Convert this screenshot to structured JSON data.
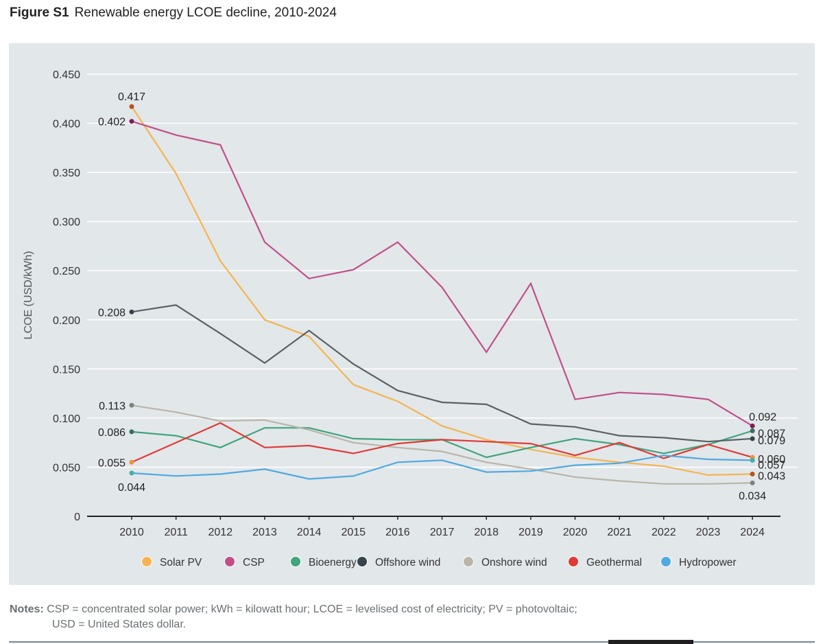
{
  "figure": {
    "number": "Figure S1",
    "title": "Renewable energy LCOE decline, 2010-2024"
  },
  "notes": {
    "label": "Notes:",
    "line1": "CSP = concentrated solar power; kWh = kilowatt hour; LCOE = levelised cost of electricity; PV = photovoltaic;",
    "line2": "USD = United States dollar."
  },
  "chart_data": {
    "type": "line",
    "title": "Renewable energy LCOE decline, 2010-2024",
    "xlabel": "",
    "ylabel": "LCOE (USD/kWh)",
    "ylim": [
      0,
      0.45
    ],
    "yticks": [
      0,
      0.05,
      0.1,
      0.15,
      0.2,
      0.25,
      0.3,
      0.35,
      0.4,
      0.45
    ],
    "ytick_labels": [
      "0",
      "0.050",
      "0.100",
      "0.150",
      "0.200",
      "0.250",
      "0.300",
      "0.350",
      "0.400",
      "0.450"
    ],
    "x": [
      "2010",
      "2011",
      "2012",
      "2013",
      "2014",
      "2015",
      "2016",
      "2017",
      "2018",
      "2019",
      "2020",
      "2021",
      "2022",
      "2023",
      "2024"
    ],
    "grid": true,
    "legend_position": "bottom-center",
    "series": [
      {
        "name": "Solar PV",
        "color": "#f5b44f",
        "end_marker_color": "#b5541f",
        "values": [
          0.417,
          0.349,
          0.26,
          0.2,
          0.183,
          0.134,
          0.117,
          0.092,
          0.078,
          0.068,
          0.06,
          0.055,
          0.051,
          0.042,
          0.043
        ],
        "start_label": "0.417",
        "end_label": "0.043"
      },
      {
        "name": "CSP",
        "color": "#c0508a",
        "end_marker_color": "#7a1f57",
        "values": [
          0.402,
          0.388,
          0.378,
          0.279,
          0.242,
          0.251,
          0.279,
          0.233,
          0.167,
          0.237,
          0.119,
          0.126,
          0.124,
          0.119,
          0.092
        ],
        "start_label": "0.402",
        "end_label": "0.092"
      },
      {
        "name": "Bioenergy",
        "color": "#40a47c",
        "end_marker_color": "#3a6e5c",
        "values": [
          0.086,
          0.082,
          0.07,
          0.09,
          0.09,
          0.079,
          0.078,
          0.078,
          0.06,
          0.07,
          0.079,
          0.073,
          0.064,
          0.073,
          0.087
        ],
        "start_label": "0.086",
        "end_label": "0.087"
      },
      {
        "name": "Offshore wind",
        "color": "#5c6062",
        "end_marker_color": "#33434a",
        "values": [
          0.208,
          0.215,
          0.186,
          0.156,
          0.189,
          0.155,
          0.128,
          0.116,
          0.114,
          0.094,
          0.091,
          0.082,
          0.08,
          0.076,
          0.079
        ],
        "start_label": "0.208",
        "end_label": "0.079"
      },
      {
        "name": "Onshore wind",
        "color": "#b9b5a8",
        "end_marker_color": "#7b847f",
        "values": [
          0.113,
          0.106,
          0.097,
          0.098,
          0.088,
          0.075,
          0.07,
          0.066,
          0.055,
          0.048,
          0.04,
          0.036,
          0.033,
          0.033,
          0.034
        ],
        "start_label": "0.113",
        "end_label": "0.034"
      },
      {
        "name": "Geothermal",
        "color": "#e03a34",
        "end_marker_color": "#f0913f",
        "values": [
          0.055,
          0.075,
          0.095,
          0.07,
          0.072,
          0.064,
          0.074,
          0.078,
          0.076,
          0.074,
          0.062,
          0.075,
          0.059,
          0.073,
          0.06
        ],
        "start_label": "0.055",
        "end_label": "0.060"
      },
      {
        "name": "Hydropower",
        "color": "#4fa9e0",
        "end_marker_color": "#40b0a4",
        "values": [
          0.044,
          0.041,
          0.043,
          0.048,
          0.038,
          0.041,
          0.055,
          0.057,
          0.045,
          0.046,
          0.052,
          0.054,
          0.062,
          0.058,
          0.057
        ],
        "start_label": "0.044",
        "end_label": "0.057"
      }
    ],
    "legend_colors": [
      "#f5b44f",
      "#c0508a",
      "#40a47c",
      "#364449",
      "#b9b5a8",
      "#e03a34",
      "#4fa9e0"
    ]
  }
}
